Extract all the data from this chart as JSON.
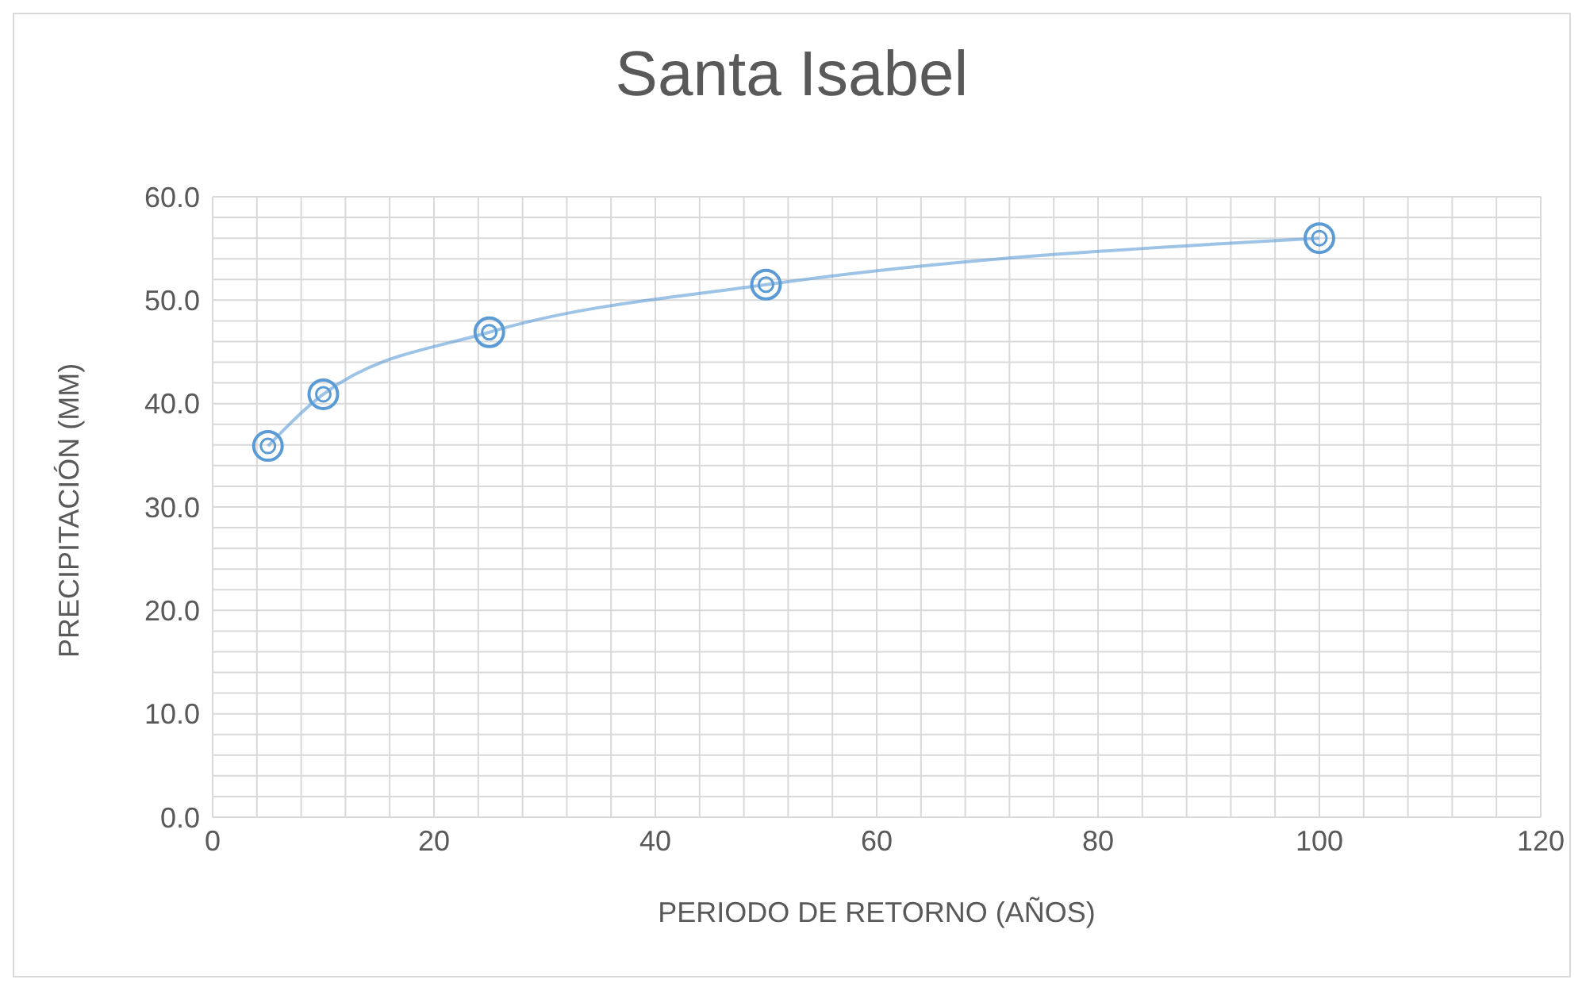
{
  "chart_data": {
    "type": "line",
    "title": "Santa Isabel",
    "xlabel": "PERIODO DE RETORNO (AÑOS)",
    "ylabel": "PRECIPITACIÓN (MM)",
    "x": [
      5,
      10,
      25,
      50,
      100
    ],
    "series": [
      {
        "color": "#5b9bd5",
        "values": [
          35.9,
          40.9,
          46.9,
          51.5,
          56.0
        ]
      }
    ],
    "xlim": [
      0,
      120
    ],
    "xticks": [
      0,
      {
        "value": 4,
        "label": null
      },
      {
        "value": 8,
        "label": null
      },
      {
        "value": 12,
        "label": null
      },
      {
        "value": 16,
        "label": null
      },
      20,
      {
        "value": 24,
        "label": null
      },
      {
        "value": 28,
        "label": null
      },
      {
        "value": 32,
        "label": null
      },
      {
        "value": 36,
        "label": null
      },
      40,
      {
        "value": 44,
        "label": null
      },
      {
        "value": 48,
        "label": null
      },
      {
        "value": 52,
        "label": null
      },
      {
        "value": 56,
        "label": null
      },
      60,
      {
        "value": 64,
        "label": null
      },
      {
        "value": 68,
        "label": null
      },
      {
        "value": 72,
        "label": null
      },
      {
        "value": 76,
        "label": null
      },
      80,
      {
        "value": 84,
        "label": null
      },
      {
        "value": 88,
        "label": null
      },
      {
        "value": 92,
        "label": null
      },
      {
        "value": 96,
        "label": null
      },
      100,
      {
        "value": 104,
        "label": null
      },
      {
        "value": 108,
        "label": null
      },
      {
        "value": 112,
        "label": null
      },
      {
        "value": 116,
        "label": null
      },
      120
    ],
    "ylim": [
      0,
      60
    ],
    "yticks": [
      {
        "value": 0,
        "label": "0.0"
      },
      {
        "value": 2,
        "label": null
      },
      {
        "value": 4,
        "label": null
      },
      {
        "value": 6,
        "label": null
      },
      {
        "value": 8,
        "label": null
      },
      {
        "value": 10,
        "label": "10.0"
      },
      {
        "value": 12,
        "label": null
      },
      {
        "value": 14,
        "label": null
      },
      {
        "value": 16,
        "label": null
      },
      {
        "value": 18,
        "label": null
      },
      {
        "value": 20,
        "label": "20.0"
      },
      {
        "value": 22,
        "label": null
      },
      {
        "value": 24,
        "label": null
      },
      {
        "value": 26,
        "label": null
      },
      {
        "value": 28,
        "label": null
      },
      {
        "value": 30,
        "label": "30.0"
      },
      {
        "value": 32,
        "label": null
      },
      {
        "value": 34,
        "label": null
      },
      {
        "value": 36,
        "label": null
      },
      {
        "value": 38,
        "label": null
      },
      {
        "value": 40,
        "label": "40.0"
      },
      {
        "value": 42,
        "label": null
      },
      {
        "value": 44,
        "label": null
      },
      {
        "value": 46,
        "label": null
      },
      {
        "value": 48,
        "label": null
      },
      {
        "value": 50,
        "label": "50.0"
      },
      {
        "value": 52,
        "label": null
      },
      {
        "value": 54,
        "label": null
      },
      {
        "value": 56,
        "label": null
      },
      {
        "value": 58,
        "label": null
      },
      {
        "value": 60,
        "label": "60.0"
      }
    ],
    "grid": true,
    "marker": "circle",
    "line_style": "solid",
    "legend": false
  }
}
